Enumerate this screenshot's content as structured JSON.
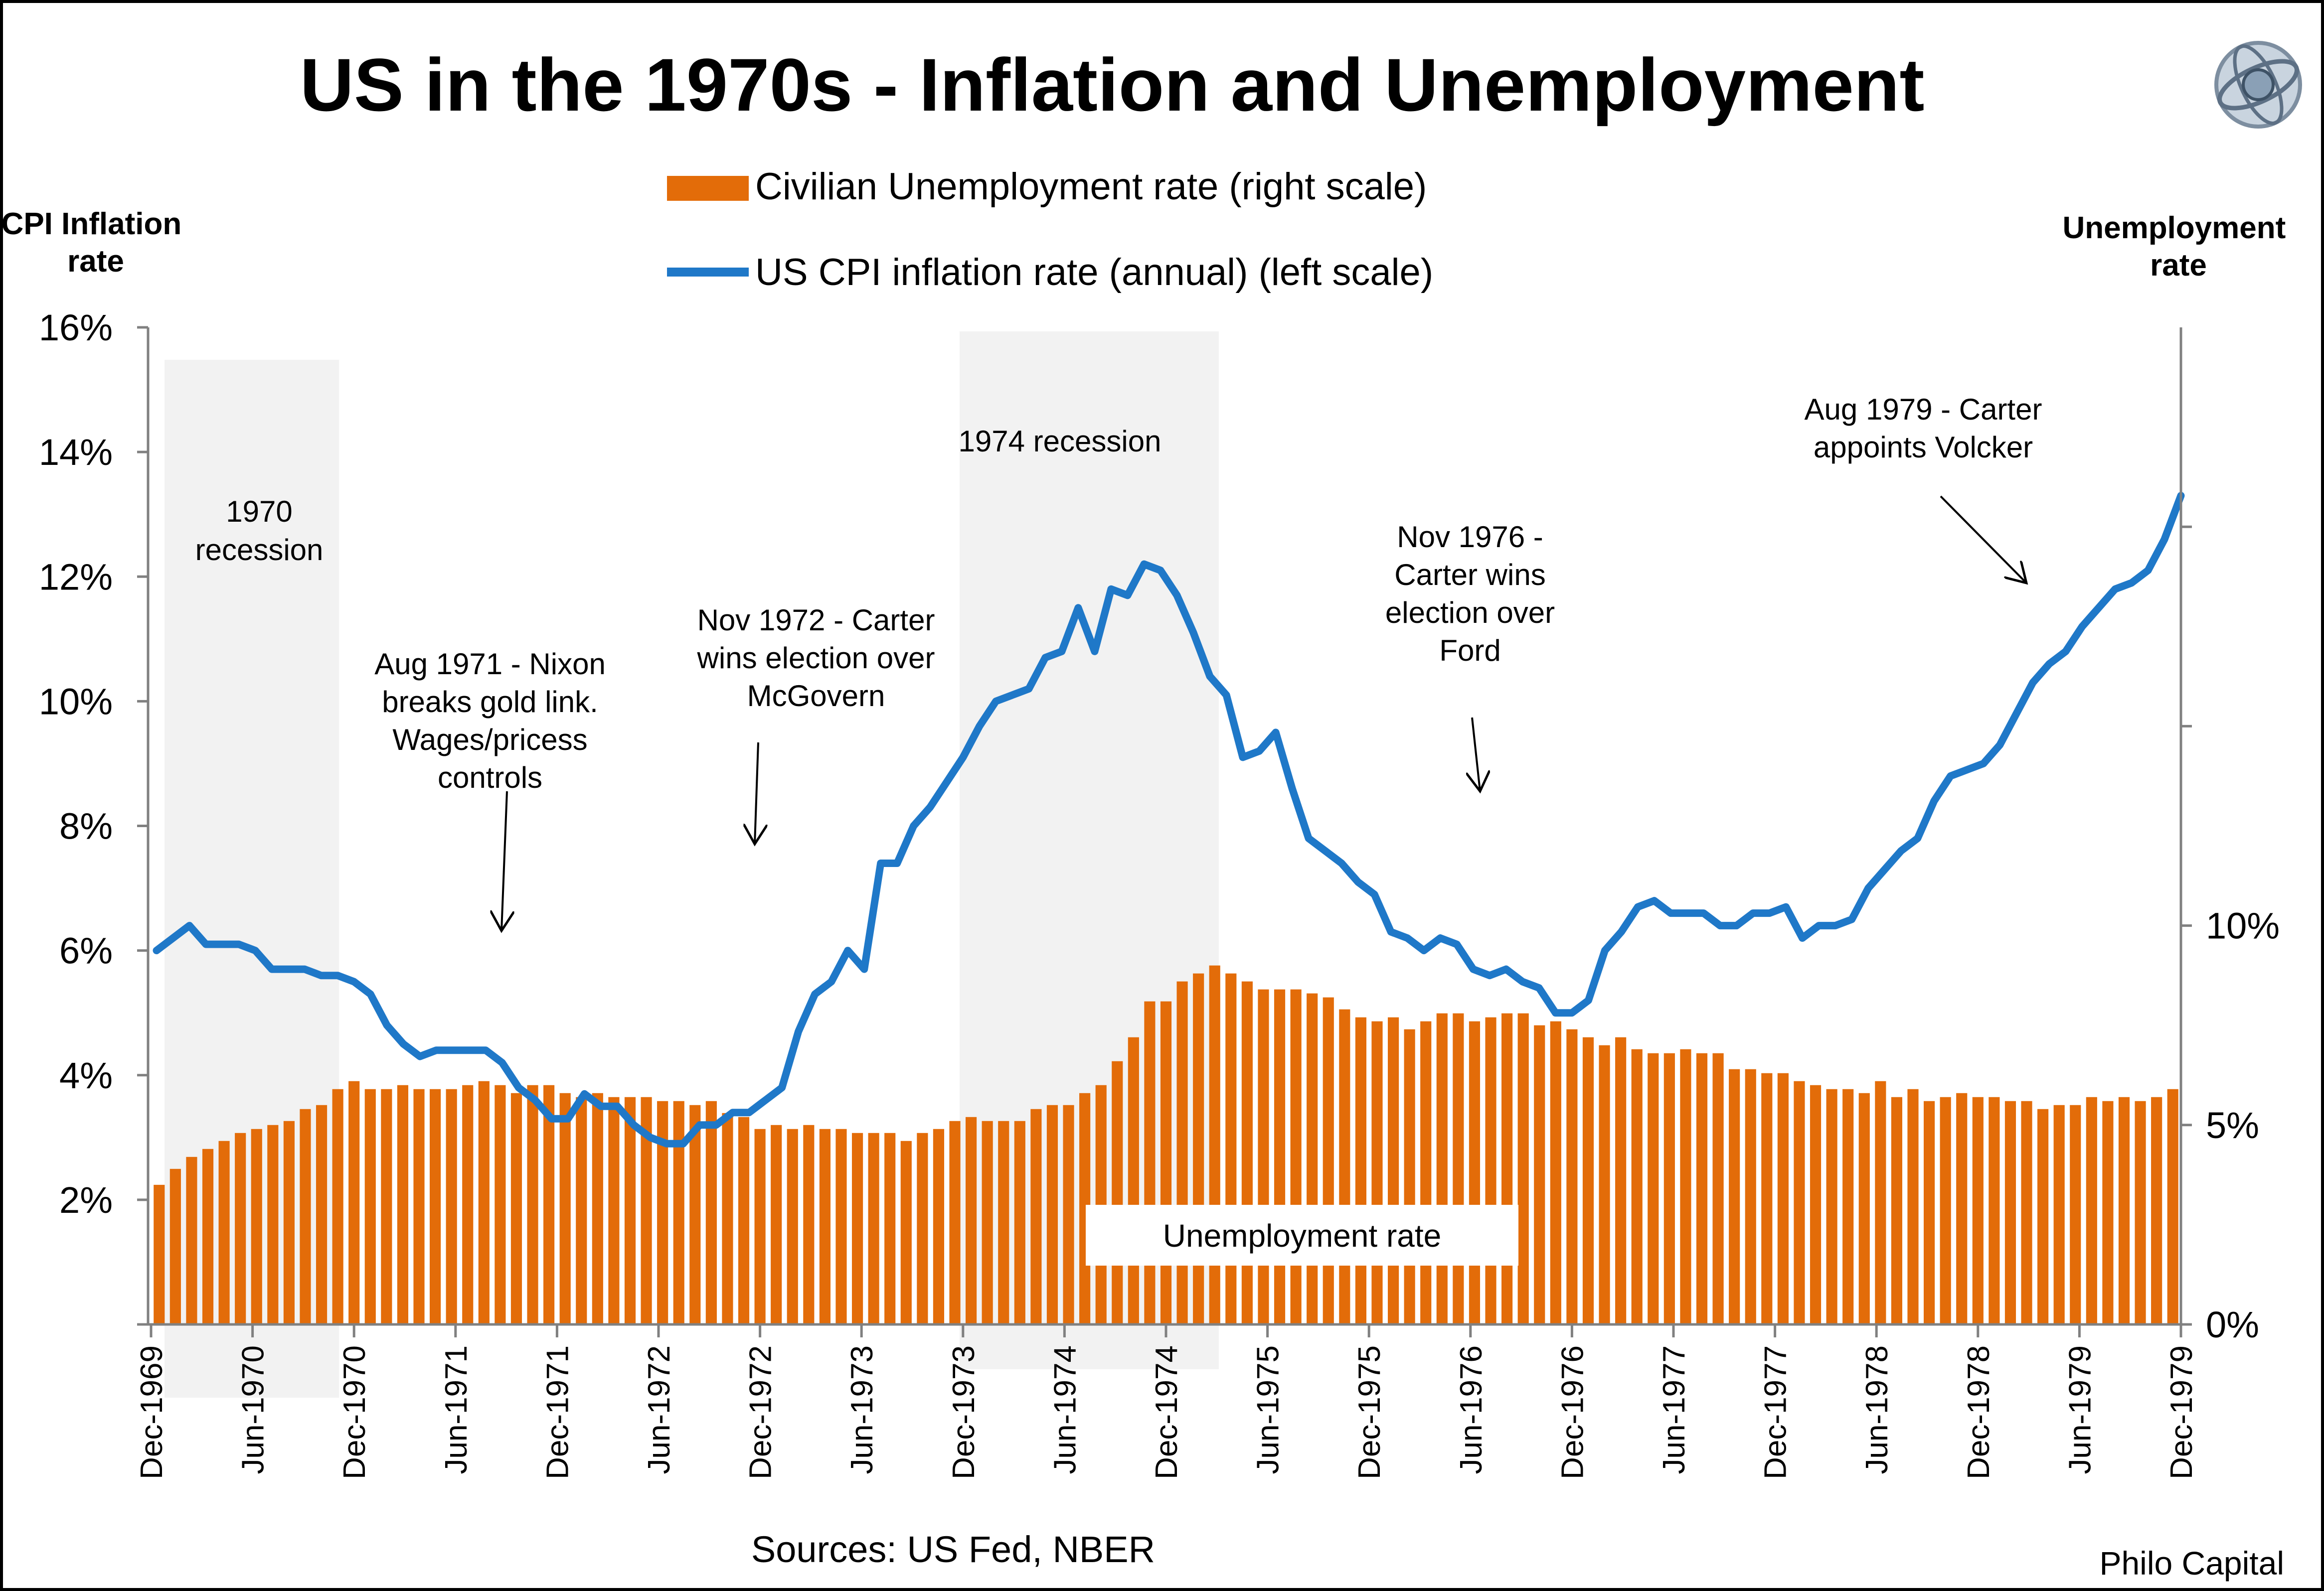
{
  "chart_data": {
    "type": "bar+line",
    "title": "US in the 1970s - Inflation and Unemployment",
    "left_axis_title": [
      "CPI Inflation",
      "rate"
    ],
    "right_axis_title": [
      "Unemployment",
      "rate"
    ],
    "left_ticks": [
      "16%",
      "14%",
      "12%",
      "10%",
      "8%",
      "6%",
      "4%",
      "2%"
    ],
    "left_ylim": [
      0,
      16
    ],
    "right_ticks": [
      "10%",
      "5%",
      "0%"
    ],
    "right_ylim": [
      0,
      25
    ],
    "x_ticks": [
      "Dec-1969",
      "Jun-1970",
      "Dec-1970",
      "Jun-1971",
      "Dec-1971",
      "Jun-1972",
      "Dec-1972",
      "Jun-1973",
      "Dec-1973",
      "Jun-1974",
      "Dec-1974",
      "Jun-1975",
      "Dec-1975",
      "Jun-1976",
      "Dec-1976",
      "Jun-1977",
      "Dec-1977",
      "Jun-1978",
      "Dec-1978",
      "Jun-1979",
      "Dec-1979"
    ],
    "x_start": "Dec-1969",
    "x_end": "Dec-1979",
    "legend": {
      "unemployment": "Civilian Unemployment rate (right scale)",
      "inflation": "US CPI inflation rate (annual) (left scale)"
    },
    "recessions": [
      {
        "label": [
          "1970",
          "recession"
        ],
        "start": "Dec-1969",
        "end": "Nov-1970"
      },
      {
        "label": [
          "1974 recession"
        ],
        "start": "Nov-1973",
        "end": "Mar-1975"
      }
    ],
    "annotations": [
      {
        "lines": [
          "Aug 1971 - Nixon",
          "breaks gold link.",
          "Wages/pricess",
          "controls"
        ]
      },
      {
        "lines": [
          "Nov 1972 - Carter",
          "wins election over",
          "McGovern"
        ]
      },
      {
        "lines": [
          "Nov 1976 -",
          "Carter wins",
          "election over",
          "Ford"
        ]
      },
      {
        "lines": [
          "Aug 1979 - Carter",
          "appoints Volcker"
        ]
      }
    ],
    "inset_label": "Unemployment rate",
    "source": "Sources: US Fed, NBER",
    "credit": "Philo Capital",
    "series": [
      {
        "name": "Civilian Unemployment rate (right scale)",
        "axis": "right",
        "color": "#e36c09",
        "values": [
          3.5,
          3.9,
          4.2,
          4.4,
          4.6,
          4.8,
          4.9,
          5.0,
          5.1,
          5.4,
          5.5,
          5.9,
          6.1,
          5.9,
          5.9,
          6.0,
          5.9,
          5.9,
          5.9,
          6.0,
          6.1,
          6.0,
          5.8,
          6.0,
          6.0,
          5.8,
          5.7,
          5.8,
          5.7,
          5.7,
          5.7,
          5.6,
          5.6,
          5.5,
          5.6,
          5.3,
          5.2,
          4.9,
          5.0,
          4.9,
          5.0,
          4.9,
          4.9,
          4.8,
          4.8,
          4.8,
          4.6,
          4.8,
          4.9,
          5.1,
          5.2,
          5.1,
          5.1,
          5.1,
          5.4,
          5.5,
          5.5,
          5.8,
          6.0,
          6.6,
          7.2,
          8.1,
          8.1,
          8.6,
          8.8,
          9.0,
          8.8,
          8.6,
          8.4,
          8.4,
          8.4,
          8.3,
          8.2,
          7.9,
          7.7,
          7.6,
          7.7,
          7.4,
          7.6,
          7.8,
          7.8,
          7.6,
          7.7,
          7.8,
          7.8,
          7.5,
          7.6,
          7.4,
          7.2,
          7.0,
          7.2,
          6.9,
          6.8,
          6.8,
          6.9,
          6.8,
          6.8,
          6.4,
          6.4,
          6.3,
          6.3,
          6.1,
          6.0,
          5.9,
          5.9,
          5.8,
          6.1,
          5.7,
          5.9,
          5.6,
          5.7,
          5.8,
          5.7,
          5.7,
          5.6,
          5.6,
          5.4,
          5.5,
          5.5,
          5.7,
          5.6,
          5.7,
          5.6,
          5.7,
          5.9
        ]
      },
      {
        "name": "US CPI inflation rate (annual) (left scale)",
        "axis": "left",
        "color": "#1f78c8",
        "values": [
          6.0,
          6.2,
          6.4,
          6.1,
          6.1,
          6.1,
          6.0,
          5.7,
          5.7,
          5.7,
          5.6,
          5.6,
          5.5,
          5.3,
          4.8,
          4.5,
          4.3,
          4.4,
          4.4,
          4.4,
          4.4,
          4.2,
          3.8,
          3.6,
          3.3,
          3.3,
          3.7,
          3.5,
          3.5,
          3.2,
          3.0,
          2.9,
          2.9,
          3.2,
          3.2,
          3.4,
          3.4,
          3.6,
          3.8,
          4.7,
          5.3,
          5.5,
          6.0,
          5.7,
          7.4,
          7.4,
          8.0,
          8.3,
          8.7,
          9.1,
          9.6,
          10.0,
          10.1,
          10.2,
          10.7,
          10.8,
          11.5,
          10.8,
          11.8,
          11.7,
          12.2,
          12.1,
          11.7,
          11.1,
          10.4,
          10.1,
          9.1,
          9.2,
          9.5,
          8.6,
          7.8,
          7.6,
          7.4,
          7.1,
          6.9,
          6.3,
          6.2,
          6.0,
          6.2,
          6.1,
          5.7,
          5.6,
          5.7,
          5.5,
          5.4,
          5.0,
          5.0,
          5.2,
          6.0,
          6.3,
          6.7,
          6.8,
          6.6,
          6.6,
          6.6,
          6.4,
          6.4,
          6.6,
          6.6,
          6.7,
          6.2,
          6.4,
          6.4,
          6.5,
          7.0,
          7.3,
          7.6,
          7.8,
          8.4,
          8.8,
          8.9,
          9.0,
          9.3,
          9.8,
          10.3,
          10.6,
          10.8,
          11.2,
          11.5,
          11.8,
          11.9,
          12.1,
          12.6,
          13.3
        ]
      }
    ]
  }
}
